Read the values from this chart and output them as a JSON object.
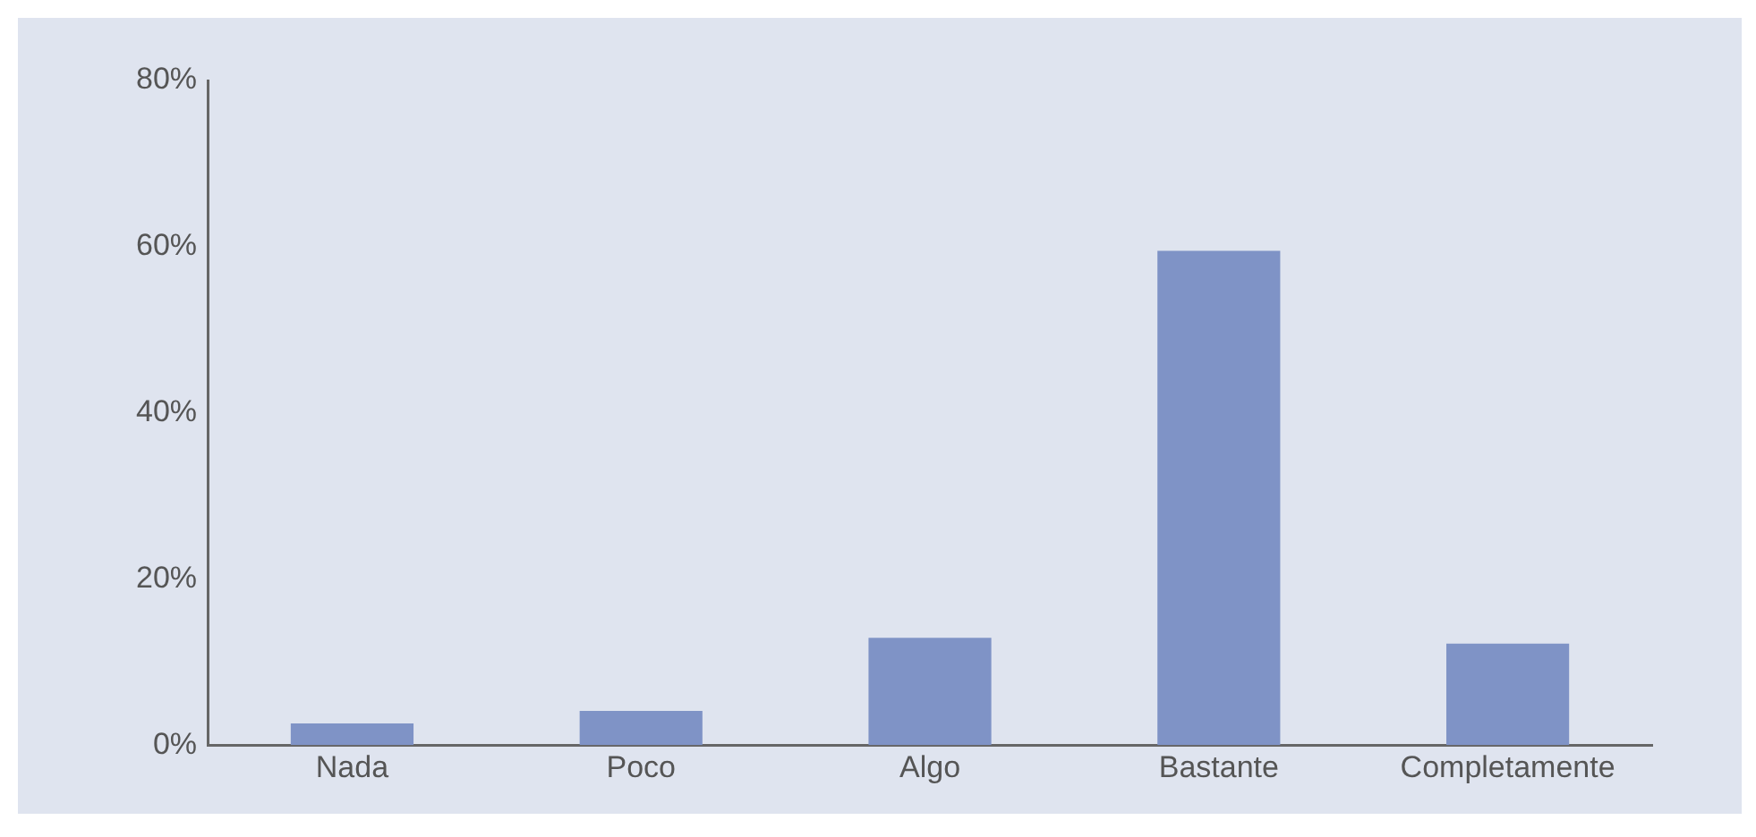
{
  "chart_data": {
    "type": "bar",
    "categories": [
      "Nada",
      "Poco",
      "Algo",
      "Bastante",
      "Completamente"
    ],
    "values": [
      2.6,
      4.1,
      12.9,
      59.5,
      12.2
    ],
    "color": "#7f93c6",
    "ylim": [
      0,
      80
    ],
    "yticks": [
      {
        "value": 0,
        "label": "0%"
      },
      {
        "value": 20,
        "label": "20%"
      },
      {
        "value": 40,
        "label": "40%"
      },
      {
        "value": 60,
        "label": "60%"
      },
      {
        "value": 80,
        "label": "80%"
      }
    ],
    "grid": false,
    "legend": false
  }
}
